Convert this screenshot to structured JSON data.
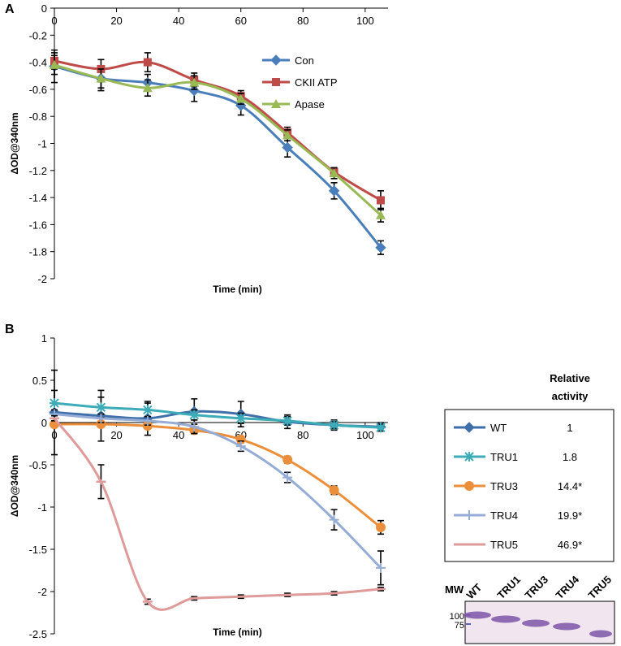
{
  "chart_data": [
    {
      "panel": "A",
      "type": "line",
      "xlabel": "Time (min)",
      "ylabel": "ΔOD@340nm",
      "xlim": [
        0,
        105
      ],
      "ylim": [
        -2,
        0
      ],
      "x_ticks": [
        0,
        20,
        40,
        60,
        80,
        100
      ],
      "y_ticks": [
        0,
        -0.2,
        -0.4,
        -0.6,
        -0.8,
        -1,
        -1.2,
        -1.4,
        -1.6,
        -1.8,
        -2
      ],
      "x_tick_labels": [
        "0",
        "20",
        "40",
        "60",
        "80",
        "100"
      ],
      "y_tick_labels": [
        "0",
        "-0.2",
        "-0.4",
        "-0.6",
        "-0.8",
        "-1",
        "-1.2",
        "-1.4",
        "-1.6",
        "-1.8",
        "-2"
      ],
      "legend_position": "top-right",
      "series": [
        {
          "name": "Con",
          "marker": "diamond",
          "color": "#4a7ebb",
          "x": [
            0,
            15,
            30,
            45,
            60,
            75,
            90,
            105
          ],
          "values": [
            -0.43,
            -0.52,
            -0.55,
            -0.61,
            -0.72,
            -1.03,
            -1.35,
            -1.77
          ],
          "errors": [
            0.12,
            0.09,
            0.06,
            0.08,
            0.07,
            0.07,
            0.06,
            0.05
          ]
        },
        {
          "name": "CKII ATP",
          "marker": "square",
          "color": "#be4b48",
          "x": [
            0,
            15,
            30,
            45,
            60,
            75,
            90,
            105
          ],
          "values": [
            -0.39,
            -0.45,
            -0.4,
            -0.53,
            -0.65,
            -0.92,
            -1.21,
            -1.42
          ],
          "errors": [
            0.06,
            0.07,
            0.07,
            0.05,
            0.04,
            0.04,
            0.03,
            0.07
          ]
        },
        {
          "name": "Apase",
          "marker": "triangle",
          "color": "#98b954",
          "x": [
            0,
            15,
            30,
            45,
            60,
            75,
            90,
            105
          ],
          "values": [
            -0.42,
            -0.52,
            -0.59,
            -0.55,
            -0.67,
            -0.94,
            -1.22,
            -1.53
          ],
          "errors": [
            0.07,
            0.07,
            0.06,
            0.05,
            0.04,
            0.04,
            0.04,
            0.05
          ]
        }
      ]
    },
    {
      "panel": "B",
      "type": "line",
      "xlabel": "Time (min)",
      "ylabel": "ΔOD@340nm",
      "xlim": [
        0,
        105
      ],
      "ylim": [
        -2.5,
        1
      ],
      "x_ticks": [
        0,
        20,
        40,
        60,
        80,
        100
      ],
      "y_ticks": [
        1,
        0.5,
        0,
        -0.5,
        -1,
        -1.5,
        -2,
        -2.5
      ],
      "x_tick_labels": [
        "0",
        "20",
        "40",
        "60",
        "80",
        "100"
      ],
      "y_tick_labels": [
        "1",
        "0.5",
        "0",
        "-0.5",
        "-1",
        "-1.5",
        "-2",
        "-2.5"
      ],
      "legend_position": "right",
      "legend_header": [
        "Relative",
        "activity"
      ],
      "series": [
        {
          "name": "WT",
          "marker": "diamond",
          "color": "#3f6fa8",
          "activity": "1",
          "x": [
            0,
            15,
            30,
            45,
            60,
            75,
            90,
            105
          ],
          "values": [
            0.12,
            0.08,
            0.05,
            0.13,
            0.1,
            0.01,
            -0.03,
            -0.05
          ],
          "errors": [
            0.5,
            0.3,
            0.2,
            0.15,
            0.15,
            0.08,
            0.06,
            0.05
          ]
        },
        {
          "name": "TRU1",
          "marker": "star",
          "color": "#3bacb8",
          "activity": "1.8",
          "x": [
            0,
            15,
            30,
            45,
            60,
            75,
            90,
            105
          ],
          "values": [
            0.23,
            0.18,
            0.15,
            0.09,
            0.05,
            0.02,
            -0.03,
            -0.06
          ],
          "errors": [
            0.15,
            0.12,
            0.08,
            0.06,
            0.06,
            0.05,
            0.04,
            0.04
          ]
        },
        {
          "name": "TRU3",
          "marker": "circle",
          "color": "#ec8f3b",
          "activity": "14.4*",
          "x": [
            0,
            15,
            30,
            45,
            60,
            75,
            90,
            105
          ],
          "values": [
            -0.02,
            -0.02,
            -0.04,
            -0.09,
            -0.2,
            -0.44,
            -0.8,
            -1.24
          ],
          "errors": [
            0.03,
            0.03,
            0.03,
            0.04,
            0.04,
            0.04,
            0.05,
            0.08
          ]
        },
        {
          "name": "TRU4",
          "marker": "plus",
          "color": "#95add6",
          "activity": "19.9*",
          "x": [
            0,
            15,
            30,
            45,
            60,
            75,
            90,
            105
          ],
          "values": [
            0.1,
            0.05,
            0.02,
            -0.05,
            -0.28,
            -0.65,
            -1.15,
            -1.72
          ],
          "errors": [
            0.05,
            0.05,
            0.05,
            0.08,
            0.06,
            0.06,
            0.12,
            0.2
          ]
        },
        {
          "name": "TRU5",
          "marker": "dash",
          "color": "#df9a9a",
          "activity": "46.9*",
          "x": [
            0,
            15,
            30,
            45,
            60,
            75,
            90,
            105
          ],
          "values": [
            0.05,
            -0.7,
            -2.12,
            -2.08,
            -2.06,
            -2.04,
            -2.02,
            -1.97
          ],
          "errors": [
            0.03,
            0.2,
            0.03,
            0.02,
            0.02,
            0.02,
            0.02,
            0.02
          ]
        }
      ]
    }
  ],
  "panels": {
    "a_label": "A",
    "b_label": "B"
  },
  "gel": {
    "mw_label": "MW",
    "lanes": [
      "WT",
      "TRU1",
      "TRU3",
      "TRU4",
      "TRU5"
    ],
    "marker_labels": [
      "100",
      "75"
    ]
  }
}
